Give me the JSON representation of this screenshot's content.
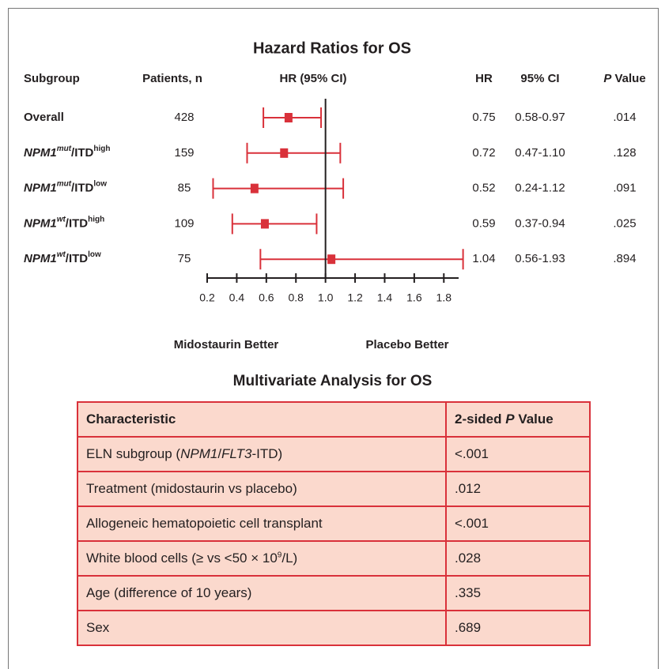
{
  "chart_data": {
    "type": "forest",
    "title": "Hazard Ratios for OS",
    "columns": {
      "subgroup": "Subgroup",
      "patients": "Patients, n",
      "plot": "HR (95% CI)",
      "hr": "HR",
      "ci": "95% CI",
      "p": [
        {
          "text": "P",
          "italic": true
        },
        {
          "text": " Value"
        }
      ]
    },
    "categories": [
      [
        {
          "text": "Overall"
        }
      ],
      [
        {
          "text": "NPM1",
          "italic": true
        },
        {
          "text": "mut",
          "sup": true,
          "italic": true
        },
        {
          "text": "/ITD"
        },
        {
          "text": "high",
          "sup": true
        }
      ],
      [
        {
          "text": "NPM1",
          "italic": true
        },
        {
          "text": "mut",
          "sup": true,
          "italic": true
        },
        {
          "text": "/ITD"
        },
        {
          "text": "low",
          "sup": true
        }
      ],
      [
        {
          "text": "NPM1",
          "italic": true
        },
        {
          "text": "wt",
          "sup": true,
          "italic": true
        },
        {
          "text": "/ITD"
        },
        {
          "text": "high",
          "sup": true
        }
      ],
      [
        {
          "text": "NPM1",
          "italic": true
        },
        {
          "text": "wt",
          "sup": true,
          "italic": true
        },
        {
          "text": "/ITD"
        },
        {
          "text": "low",
          "sup": true
        }
      ]
    ],
    "patients": [
      428,
      159,
      85,
      109,
      75
    ],
    "values": [
      0.75,
      0.72,
      0.52,
      0.59,
      1.04
    ],
    "ci_low": [
      0.58,
      0.47,
      0.24,
      0.37,
      0.56
    ],
    "ci_high": [
      0.97,
      1.1,
      1.12,
      0.94,
      1.93
    ],
    "ci_labels": [
      "0.58-0.97",
      "0.47-1.10",
      "0.24-1.12",
      "0.37-0.94",
      "0.56-1.93"
    ],
    "p_values": [
      ".014",
      ".128",
      ".091",
      ".025",
      ".894"
    ],
    "color": "#d9313a",
    "reference_line": 1,
    "xlim": [
      0.2,
      1.9
    ],
    "xticks": [
      0.2,
      0.4,
      0.6,
      0.8,
      {
        "value": 1,
        "label": "1.0"
      },
      1.2,
      1.4,
      1.6,
      1.8
    ],
    "x_label_left": "Midostaurin Better",
    "x_label_right": "Placebo Better"
  },
  "table": {
    "title": "Multivariate Analysis for OS",
    "header": [
      [
        {
          "text": "Characteristic"
        }
      ],
      [
        {
          "text": "2-sided "
        },
        {
          "text": "P",
          "italic": true
        },
        {
          "text": " Value"
        }
      ]
    ],
    "rows": [
      [
        [
          {
            "text": "ELN subgroup ("
          },
          {
            "text": "NPM1",
            "italic": true
          },
          {
            "text": "/"
          },
          {
            "text": "FLT3",
            "italic": true
          },
          {
            "text": "-ITD)"
          }
        ],
        [
          {
            "text": "<.001"
          }
        ]
      ],
      [
        [
          {
            "text": "Treatment (midostaurin vs placebo)"
          }
        ],
        [
          {
            "text": ".012"
          }
        ]
      ],
      [
        [
          {
            "text": "Allogeneic hematopoietic cell transplant"
          }
        ],
        [
          {
            "text": "<.001"
          }
        ]
      ],
      [
        [
          {
            "text": "White blood cells (≥ vs <50 × 10"
          },
          {
            "text": "9",
            "sup": true
          },
          {
            "text": "/L)"
          }
        ],
        [
          {
            "text": ".028"
          }
        ]
      ],
      [
        [
          {
            "text": "Age (difference of 10 years)"
          }
        ],
        [
          {
            "text": ".335"
          }
        ]
      ],
      [
        [
          {
            "text": "Sex"
          }
        ],
        [
          {
            "text": ".689"
          }
        ]
      ]
    ]
  }
}
